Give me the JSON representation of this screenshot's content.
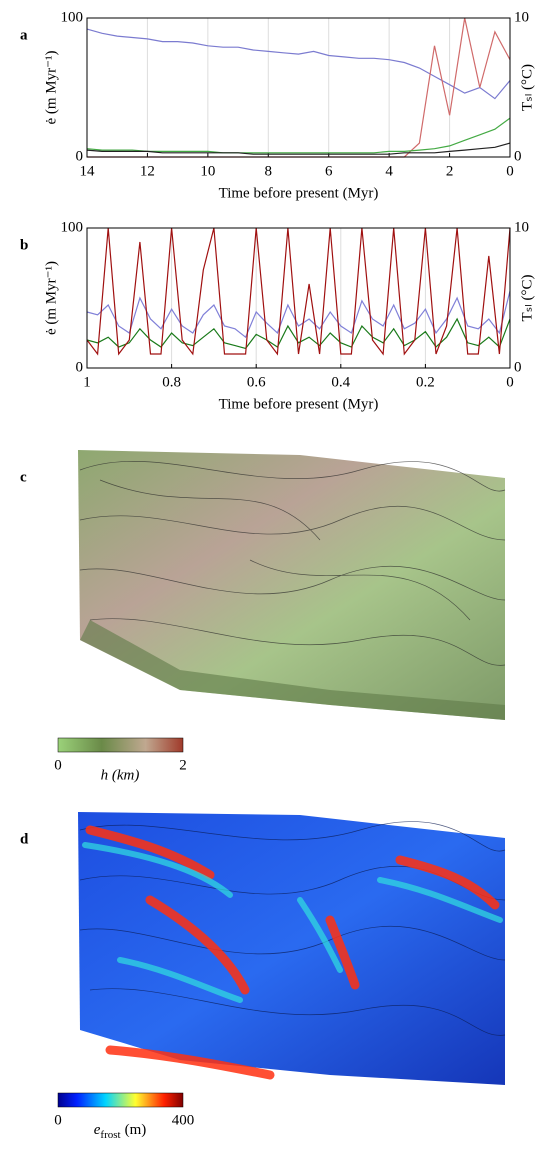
{
  "chart_data": [
    {
      "type": "line",
      "panel_label": "a",
      "xlabel": "Time before present (Myr)",
      "ylabel": "ė (m Myr⁻¹)",
      "y2label": "Tₛₗ (°C)",
      "xlim": [
        14,
        0
      ],
      "ylim": [
        0,
        100
      ],
      "y2lim": [
        0,
        10
      ],
      "xticks": [
        14,
        12,
        10,
        8,
        6,
        4,
        2,
        0
      ],
      "yticks": [
        0,
        100
      ],
      "y2ticks": [
        0,
        10
      ],
      "grid": true,
      "x": [
        14,
        13.5,
        13,
        12.5,
        12,
        11.5,
        11,
        10.5,
        10,
        9.5,
        9,
        8.5,
        8,
        7.5,
        7,
        6.5,
        6,
        5.5,
        5,
        4.5,
        4,
        3.5,
        3,
        2.5,
        2,
        1.5,
        1,
        0.5,
        0
      ],
      "series": [
        {
          "color": "#7b7bd0",
          "values": [
            92,
            89,
            87,
            86,
            85,
            83,
            83,
            82,
            80,
            79,
            79,
            77,
            76,
            75,
            74,
            76,
            73,
            72,
            71,
            71,
            70,
            68,
            64,
            58,
            52,
            46,
            50,
            42,
            55
          ]
        },
        {
          "color": "#d06a6a",
          "axis": "y2",
          "values": [
            0,
            0,
            0,
            0,
            0,
            0,
            0,
            0,
            0,
            0,
            0,
            0,
            0,
            0,
            0,
            0,
            0,
            0,
            0,
            0,
            0,
            0,
            1,
            8,
            3,
            10,
            5,
            9,
            7
          ]
        },
        {
          "color": "#44aa44",
          "values": [
            6,
            5,
            5,
            5,
            4,
            4,
            4,
            4,
            4,
            3,
            3,
            3,
            3,
            3,
            3,
            3,
            3,
            3,
            3,
            3,
            4,
            4,
            5,
            6,
            8,
            12,
            16,
            20,
            28
          ]
        },
        {
          "color": "#222222",
          "values": [
            5,
            4,
            4,
            4,
            4,
            3,
            3,
            3,
            3,
            3,
            3,
            2,
            2,
            2,
            2,
            2,
            2,
            2,
            2,
            2,
            2,
            3,
            3,
            3,
            4,
            5,
            6,
            7,
            10
          ]
        }
      ]
    },
    {
      "type": "line",
      "panel_label": "b",
      "xlabel": "Time before present (Myr)",
      "ylabel": "ė (m Myr⁻¹)",
      "y2label": "Tₛₗ (°C)",
      "xlim": [
        1,
        0
      ],
      "ylim": [
        0,
        100
      ],
      "y2lim": [
        0,
        10
      ],
      "xticks": [
        1,
        0.8,
        0.6,
        0.4,
        0.2,
        0
      ],
      "yticks": [
        0,
        100
      ],
      "y2ticks": [
        0,
        10
      ],
      "grid": true,
      "x": [
        1,
        0.975,
        0.95,
        0.925,
        0.9,
        0.875,
        0.85,
        0.825,
        0.8,
        0.775,
        0.75,
        0.725,
        0.7,
        0.675,
        0.65,
        0.625,
        0.6,
        0.575,
        0.55,
        0.525,
        0.5,
        0.475,
        0.45,
        0.425,
        0.4,
        0.375,
        0.35,
        0.325,
        0.3,
        0.275,
        0.25,
        0.225,
        0.2,
        0.175,
        0.15,
        0.125,
        0.1,
        0.075,
        0.05,
        0.025,
        0
      ],
      "series": [
        {
          "color": "#8080d8",
          "values": [
            40,
            38,
            45,
            30,
            25,
            50,
            35,
            28,
            42,
            30,
            25,
            38,
            45,
            30,
            28,
            22,
            40,
            32,
            25,
            45,
            30,
            35,
            28,
            40,
            30,
            25,
            48,
            35,
            30,
            45,
            28,
            32,
            42,
            25,
            35,
            50,
            30,
            28,
            35,
            25,
            55
          ]
        },
        {
          "color": "#1a7a1a",
          "values": [
            20,
            18,
            22,
            15,
            18,
            28,
            20,
            15,
            25,
            18,
            16,
            22,
            28,
            18,
            16,
            14,
            24,
            20,
            15,
            30,
            18,
            22,
            16,
            25,
            18,
            15,
            30,
            22,
            18,
            28,
            16,
            20,
            26,
            15,
            22,
            35,
            18,
            16,
            22,
            15,
            35
          ]
        },
        {
          "color": "#a01010",
          "axis": "y2",
          "values": [
            2,
            1,
            10,
            1,
            2,
            9,
            1,
            1,
            10,
            2,
            1,
            7,
            10,
            1,
            1,
            1,
            10,
            2,
            1,
            10,
            1,
            6,
            1,
            10,
            1,
            1,
            10,
            2,
            1,
            10,
            1,
            2,
            10,
            1,
            3,
            10,
            1,
            1,
            8,
            1,
            10
          ]
        }
      ]
    }
  ],
  "renders": [
    {
      "panel_label": "c",
      "colorbar": {
        "range": [
          0,
          2
        ],
        "ticks": [
          0,
          2
        ],
        "label": "h (km)"
      }
    },
    {
      "panel_label": "d",
      "colorbar": {
        "range": [
          0,
          400
        ],
        "ticks": [
          0,
          400
        ],
        "label_main": "e",
        "label_sub": "frost",
        "label_unit": "(m)"
      }
    }
  ]
}
